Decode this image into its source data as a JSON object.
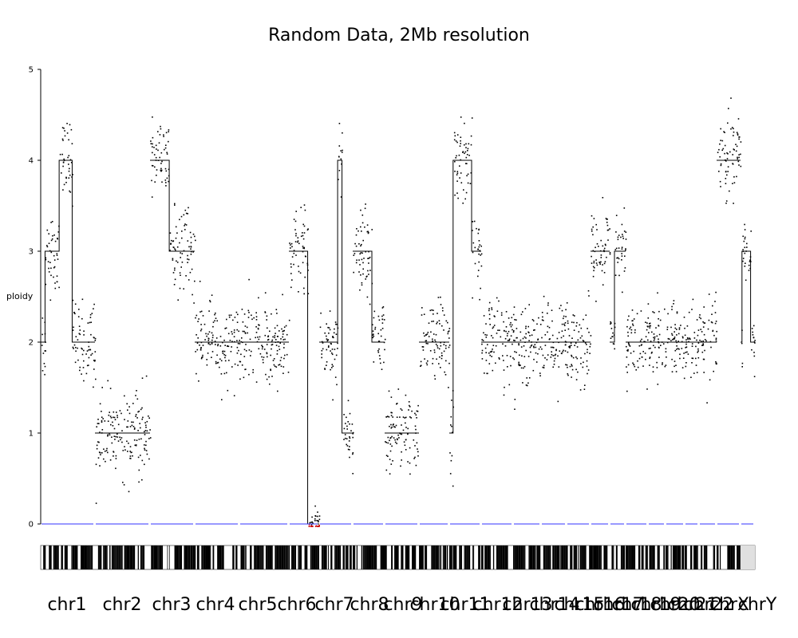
{
  "chart_data": {
    "type": "scatter",
    "title": "Random Data, 2Mb resolution",
    "ylabel": "ploidy",
    "xlabel": "",
    "ylim": [
      0,
      5
    ],
    "yticks": [
      0,
      1,
      2,
      3,
      4,
      5
    ],
    "grid": false,
    "baseline": {
      "value": 0,
      "color": "#3333ff"
    },
    "point_color": "#000000",
    "deletion_point_color": "#cc0000",
    "chromosomes": [
      {
        "name": "chr1",
        "segments": [
          [
            0,
            0.08,
            2
          ],
          [
            0.08,
            0.34,
            3
          ],
          [
            0.34,
            0.58,
            4
          ],
          [
            0.58,
            1,
            2
          ]
        ]
      },
      {
        "name": "chr2",
        "segments": [
          [
            0,
            1,
            1
          ]
        ]
      },
      {
        "name": "chr3",
        "segments": [
          [
            0,
            0.43,
            4
          ],
          [
            0.43,
            1,
            3
          ]
        ]
      },
      {
        "name": "chr4",
        "segments": [
          [
            0,
            1,
            2
          ]
        ]
      },
      {
        "name": "chr5",
        "segments": [
          [
            0,
            1,
            2
          ]
        ]
      },
      {
        "name": "chr6",
        "segments": [
          [
            0,
            0.62,
            3
          ],
          [
            0.62,
            1,
            0
          ]
        ]
      },
      {
        "name": "chr7",
        "segments": [
          [
            0,
            0.55,
            2
          ],
          [
            0.55,
            0.68,
            4
          ],
          [
            0.68,
            1,
            1
          ]
        ]
      },
      {
        "name": "chr8",
        "segments": [
          [
            0,
            0.6,
            3
          ],
          [
            0.6,
            1,
            2
          ]
        ]
      },
      {
        "name": "chr9",
        "segments": [
          [
            0,
            1,
            1
          ]
        ]
      },
      {
        "name": "chr10",
        "segments": [
          [
            0,
            1,
            2
          ]
        ]
      },
      {
        "name": "chr11",
        "segments": [
          [
            0,
            0.12,
            1
          ],
          [
            0.12,
            0.7,
            4
          ],
          [
            0.7,
            1,
            3
          ]
        ]
      },
      {
        "name": "chr12",
        "segments": [
          [
            0,
            1,
            2
          ]
        ]
      },
      {
        "name": "chr13",
        "segments": [
          [
            0,
            1,
            2
          ]
        ]
      },
      {
        "name": "chr14",
        "segments": [
          [
            0,
            1,
            2
          ]
        ]
      },
      {
        "name": "chr15",
        "segments": [
          [
            0,
            1,
            2
          ]
        ]
      },
      {
        "name": "chr16",
        "segments": [
          [
            0,
            1,
            3
          ]
        ]
      },
      {
        "name": "chr17",
        "segments": [
          [
            0,
            0.3,
            2
          ],
          [
            0.3,
            1,
            3
          ]
        ]
      },
      {
        "name": "chr18",
        "segments": [
          [
            0,
            1,
            2
          ]
        ]
      },
      {
        "name": "chr19",
        "segments": [
          [
            0,
            1,
            2
          ]
        ]
      },
      {
        "name": "chr20",
        "segments": [
          [
            0,
            1,
            2
          ]
        ]
      },
      {
        "name": "chr21",
        "segments": [
          [
            0,
            1,
            2
          ]
        ]
      },
      {
        "name": "chr22",
        "segments": [
          [
            0,
            1,
            2
          ]
        ]
      },
      {
        "name": "chrX",
        "segments": [
          [
            0,
            1,
            4
          ]
        ]
      },
      {
        "name": "chrY",
        "segments": [
          [
            0,
            0.1,
            2
          ],
          [
            0.1,
            0.7,
            3
          ],
          [
            0.7,
            1,
            2
          ]
        ]
      }
    ]
  }
}
